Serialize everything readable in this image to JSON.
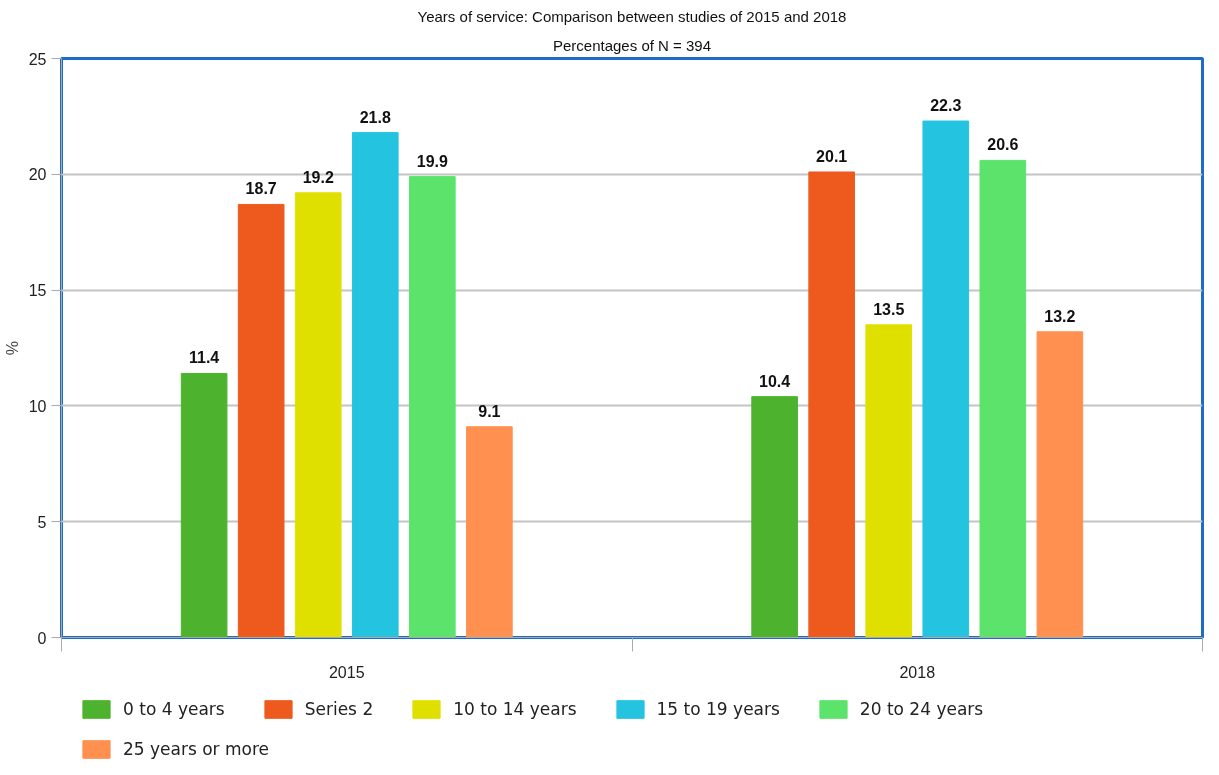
{
  "chart_data": {
    "type": "bar",
    "title": "Years of service: Comparison between studies of 2015 and 2018",
    "subtitle": "Percentages of N = 394",
    "ylabel": "%",
    "categories": [
      "2015",
      "2018"
    ],
    "series": [
      {
        "name": "0 to 4 years",
        "color": "#4db32e",
        "values": [
          11.4,
          10.4
        ]
      },
      {
        "name": "Series 2",
        "color": "#ee5a1e",
        "values": [
          18.7,
          20.1
        ]
      },
      {
        "name": "10 to 14 years",
        "color": "#e0e000",
        "values": [
          19.2,
          13.5
        ]
      },
      {
        "name": "15 to 19 years",
        "color": "#24c4e0",
        "values": [
          21.8,
          22.3
        ]
      },
      {
        "name": "20 to 24 years",
        "color": "#5ce36c",
        "values": [
          19.9,
          20.6
        ]
      },
      {
        "name": "25 years or more",
        "color": "#ff9050",
        "values": [
          9.1,
          13.2
        ]
      }
    ],
    "ylim": [
      0,
      25
    ],
    "yticks": [
      0,
      5,
      10,
      15,
      20,
      25
    ],
    "grid": "y",
    "legend": "bottom",
    "data_labels": true
  }
}
